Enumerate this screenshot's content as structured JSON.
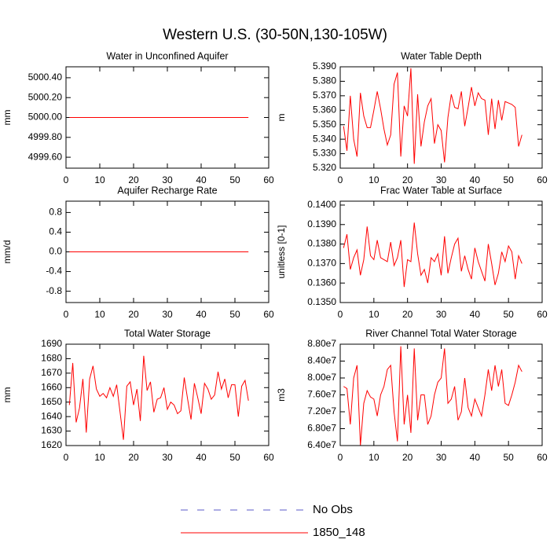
{
  "title": "Western U.S. (30-50N,130-105W)",
  "legend": [
    {
      "name": "No Obs",
      "color": "#5a5ac8",
      "dashed": true
    },
    {
      "name": "1850_148",
      "color": "#ff0000",
      "dashed": false
    }
  ],
  "chart_data": [
    {
      "type": "line",
      "title": "Water in Unconfined Aquifer",
      "ylabel": "mm",
      "x": [
        1,
        2,
        3,
        4,
        5,
        6,
        7,
        8,
        9,
        10,
        11,
        12,
        13,
        14,
        15,
        16,
        17,
        18,
        19,
        20,
        21,
        22,
        23,
        24,
        25,
        26,
        27,
        28,
        29,
        30,
        31,
        32,
        33,
        34,
        35,
        36,
        37,
        38,
        39,
        40,
        41,
        42,
        43,
        44,
        45,
        46,
        47,
        48,
        49,
        50,
        51,
        52,
        53,
        54
      ],
      "series": [
        {
          "color": "#ff0000",
          "values": [
            5000,
            5000,
            5000,
            5000,
            5000,
            5000,
            5000,
            5000,
            5000,
            5000,
            5000,
            5000,
            5000,
            5000,
            5000,
            5000,
            5000,
            5000,
            5000,
            5000,
            5000,
            5000,
            5000,
            5000,
            5000,
            5000,
            5000,
            5000,
            5000,
            5000,
            5000,
            5000,
            5000,
            5000,
            5000,
            5000,
            5000,
            5000,
            5000,
            5000,
            5000,
            5000,
            5000,
            5000,
            5000,
            5000,
            5000,
            5000,
            5000,
            5000,
            5000,
            5000,
            5000,
            5000
          ]
        }
      ],
      "xlim": [
        0,
        60
      ],
      "xticks": [
        0,
        10,
        20,
        30,
        40,
        50,
        60
      ],
      "ylim": [
        4999.49,
        5000.51
      ],
      "yticks": [
        {
          "value": 4999.6,
          "label": "4999.60"
        },
        {
          "value": 4999.8,
          "label": "4999.80"
        },
        {
          "value": 5000,
          "label": "5000.00"
        },
        {
          "value": 5000.2,
          "label": "5000.20"
        },
        {
          "value": 5000.4,
          "label": "5000.40"
        }
      ]
    },
    {
      "type": "line",
      "title": "Water Table Depth",
      "ylabel": "m",
      "x": [
        1,
        2,
        3,
        4,
        5,
        6,
        7,
        8,
        9,
        10,
        11,
        12,
        13,
        14,
        15,
        16,
        17,
        18,
        19,
        20,
        21,
        22,
        23,
        24,
        25,
        26,
        27,
        28,
        29,
        30,
        31,
        32,
        33,
        34,
        35,
        36,
        37,
        38,
        39,
        40,
        41,
        42,
        43,
        44,
        45,
        46,
        47,
        48,
        49,
        50,
        51,
        52,
        53,
        54
      ],
      "series": [
        {
          "color": "#ff0000",
          "values": [
            5.349,
            5.332,
            5.37,
            5.34,
            5.328,
            5.372,
            5.356,
            5.348,
            5.348,
            5.36,
            5.373,
            5.361,
            5.347,
            5.336,
            5.343,
            5.378,
            5.386,
            5.328,
            5.363,
            5.356,
            5.389,
            5.323,
            5.371,
            5.335,
            5.352,
            5.363,
            5.368,
            5.337,
            5.35,
            5.346,
            5.324,
            5.355,
            5.371,
            5.362,
            5.361,
            5.373,
            5.349,
            5.362,
            5.376,
            5.363,
            5.372,
            5.368,
            5.367,
            5.343,
            5.368,
            5.347,
            5.367,
            5.353,
            5.366,
            5.365,
            5.364,
            5.362,
            5.335,
            5.343
          ]
        }
      ],
      "xlim": [
        0,
        60
      ],
      "xticks": [
        0,
        10,
        20,
        30,
        40,
        50,
        60
      ],
      "ylim": [
        5.32,
        5.39
      ],
      "yticks": [
        {
          "value": 5.32,
          "label": "5.320"
        },
        {
          "value": 5.33,
          "label": "5.330"
        },
        {
          "value": 5.34,
          "label": "5.340"
        },
        {
          "value": 5.35,
          "label": "5.350"
        },
        {
          "value": 5.36,
          "label": "5.360"
        },
        {
          "value": 5.37,
          "label": "5.370"
        },
        {
          "value": 5.38,
          "label": "5.380"
        },
        {
          "value": 5.39,
          "label": "5.390"
        }
      ]
    },
    {
      "type": "line",
      "title": "Aquifer Recharge Rate",
      "ylabel": "mm/d",
      "x": [
        1,
        2,
        3,
        4,
        5,
        6,
        7,
        8,
        9,
        10,
        11,
        12,
        13,
        14,
        15,
        16,
        17,
        18,
        19,
        20,
        21,
        22,
        23,
        24,
        25,
        26,
        27,
        28,
        29,
        30,
        31,
        32,
        33,
        34,
        35,
        36,
        37,
        38,
        39,
        40,
        41,
        42,
        43,
        44,
        45,
        46,
        47,
        48,
        49,
        50,
        51,
        52,
        53,
        54
      ],
      "series": [
        {
          "color": "#ff0000",
          "values": [
            0,
            0,
            0,
            0,
            0,
            0,
            0,
            0,
            0,
            0,
            0,
            0,
            0,
            0,
            0,
            0,
            0,
            0,
            0,
            0,
            0,
            0,
            0,
            0,
            0,
            0,
            0,
            0,
            0,
            0,
            0,
            0,
            0,
            0,
            0,
            0,
            0,
            0,
            0,
            0,
            0,
            0,
            0,
            0,
            0,
            0,
            0,
            0,
            0,
            0,
            0,
            0,
            0,
            0
          ]
        }
      ],
      "xlim": [
        0,
        60
      ],
      "xticks": [
        0,
        10,
        20,
        30,
        40,
        50,
        60
      ],
      "ylim": [
        -1.03,
        1.03
      ],
      "yticks": [
        -0.8,
        -0.4,
        {
          "value": 0,
          "label": "0.0"
        },
        0.4,
        0.8
      ]
    },
    {
      "type": "line",
      "title": "Frac Water Table at Surface",
      "ylabel": "unitless [0-1]",
      "x": [
        1,
        2,
        3,
        4,
        5,
        6,
        7,
        8,
        9,
        10,
        11,
        12,
        13,
        14,
        15,
        16,
        17,
        18,
        19,
        20,
        21,
        22,
        23,
        24,
        25,
        26,
        27,
        28,
        29,
        30,
        31,
        32,
        33,
        34,
        35,
        36,
        37,
        38,
        39,
        40,
        41,
        42,
        43,
        44,
        45,
        46,
        47,
        48,
        49,
        50,
        51,
        52,
        53,
        54
      ],
      "series": [
        {
          "color": "#ff0000",
          "values": [
            0.1378,
            0.1385,
            0.1367,
            0.1373,
            0.1377,
            0.1364,
            0.1372,
            0.1389,
            0.1374,
            0.1372,
            0.1382,
            0.1373,
            0.1372,
            0.1371,
            0.1381,
            0.1369,
            0.1373,
            0.1382,
            0.1358,
            0.1372,
            0.1371,
            0.1391,
            0.1375,
            0.1364,
            0.1367,
            0.136,
            0.1373,
            0.1371,
            0.1375,
            0.1364,
            0.1384,
            0.1365,
            0.1373,
            0.138,
            0.1383,
            0.1366,
            0.1374,
            0.1367,
            0.1362,
            0.1378,
            0.1371,
            0.1366,
            0.1361,
            0.138,
            0.137,
            0.1359,
            0.1365,
            0.1376,
            0.1371,
            0.1379,
            0.1376,
            0.1362,
            0.1374,
            0.137
          ]
        }
      ],
      "xlim": [
        0,
        60
      ],
      "xticks": [
        0,
        10,
        20,
        30,
        40,
        50,
        60
      ],
      "ylim": [
        0.135,
        0.1402
      ],
      "yticks": [
        {
          "value": 0.135,
          "label": "0.1350"
        },
        {
          "value": 0.136,
          "label": "0.1360"
        },
        {
          "value": 0.137,
          "label": "0.1370"
        },
        {
          "value": 0.138,
          "label": "0.1380"
        },
        {
          "value": 0.139,
          "label": "0.1390"
        },
        {
          "value": 0.14,
          "label": "0.1400"
        }
      ]
    },
    {
      "type": "line",
      "title": "Total Water Storage",
      "ylabel": "mm",
      "x": [
        1,
        2,
        3,
        4,
        5,
        6,
        7,
        8,
        9,
        10,
        11,
        12,
        13,
        14,
        15,
        16,
        17,
        18,
        19,
        20,
        21,
        22,
        23,
        24,
        25,
        26,
        27,
        28,
        29,
        30,
        31,
        32,
        33,
        34,
        35,
        36,
        37,
        38,
        39,
        40,
        41,
        42,
        43,
        44,
        45,
        46,
        47,
        48,
        49,
        50,
        51,
        52,
        53,
        54
      ],
      "series": [
        {
          "color": "#ff0000",
          "values": [
            1648,
            1677,
            1636,
            1646,
            1666,
            1629,
            1666,
            1675,
            1659,
            1654,
            1656,
            1653,
            1660,
            1654,
            1662,
            1643,
            1624,
            1661,
            1664,
            1648,
            1659,
            1637,
            1682,
            1658,
            1664,
            1643,
            1652,
            1653,
            1660,
            1645,
            1650,
            1648,
            1642,
            1644,
            1667,
            1652,
            1638,
            1663,
            1653,
            1642,
            1663,
            1659,
            1652,
            1655,
            1671,
            1659,
            1666,
            1653,
            1662,
            1662,
            1640,
            1661,
            1665,
            1651
          ]
        }
      ],
      "xlim": [
        0,
        60
      ],
      "xticks": [
        0,
        10,
        20,
        30,
        40,
        50,
        60
      ],
      "ylim": [
        1620,
        1690
      ],
      "yticks": [
        1620,
        1630,
        1640,
        1650,
        1660,
        1670,
        1680,
        1690
      ]
    },
    {
      "type": "line",
      "title": "River Channel Total Water Storage",
      "ylabel": "m3",
      "x": [
        1,
        2,
        3,
        4,
        5,
        6,
        7,
        8,
        9,
        10,
        11,
        12,
        13,
        14,
        15,
        16,
        17,
        18,
        19,
        20,
        21,
        22,
        23,
        24,
        25,
        26,
        27,
        28,
        29,
        30,
        31,
        32,
        33,
        34,
        35,
        36,
        37,
        38,
        39,
        40,
        41,
        42,
        43,
        44,
        45,
        46,
        47,
        48,
        49,
        50,
        51,
        52,
        53,
        54
      ],
      "series": [
        {
          "color": "#ff0000",
          "values": [
            78000000,
            77500000,
            69000000,
            80000000,
            83000000,
            64000000,
            74000000,
            77000000,
            75500000,
            75000000,
            71000000,
            76000000,
            78000000,
            82000000,
            83000000,
            72000000,
            65000000,
            87500000,
            69000000,
            76000000,
            67000000,
            87000000,
            70000000,
            76000000,
            76000000,
            69000000,
            71000000,
            76000000,
            79000000,
            80000000,
            87000000,
            74000000,
            75000000,
            78000000,
            70000000,
            72000000,
            80000000,
            73000000,
            71000000,
            75000000,
            73000000,
            71000000,
            76000000,
            82000000,
            77000000,
            83000000,
            78000000,
            82000000,
            74000000,
            73500000,
            76000000,
            79000000,
            83000000,
            81500000
          ]
        }
      ],
      "xlim": [
        0,
        60
      ],
      "xticks": [
        0,
        10,
        20,
        30,
        40,
        50,
        60
      ],
      "ylim": [
        64000000,
        88000000
      ],
      "yticks": [
        {
          "value": 64000000,
          "label": "6.40e7"
        },
        {
          "value": 68000000,
          "label": "6.80e7"
        },
        {
          "value": 72000000,
          "label": "7.20e7"
        },
        {
          "value": 76000000,
          "label": "7.60e7"
        },
        {
          "value": 80000000,
          "label": "8.00e7"
        },
        {
          "value": 84000000,
          "label": "8.40e7"
        },
        {
          "value": 88000000,
          "label": "8.80e7"
        }
      ]
    }
  ]
}
